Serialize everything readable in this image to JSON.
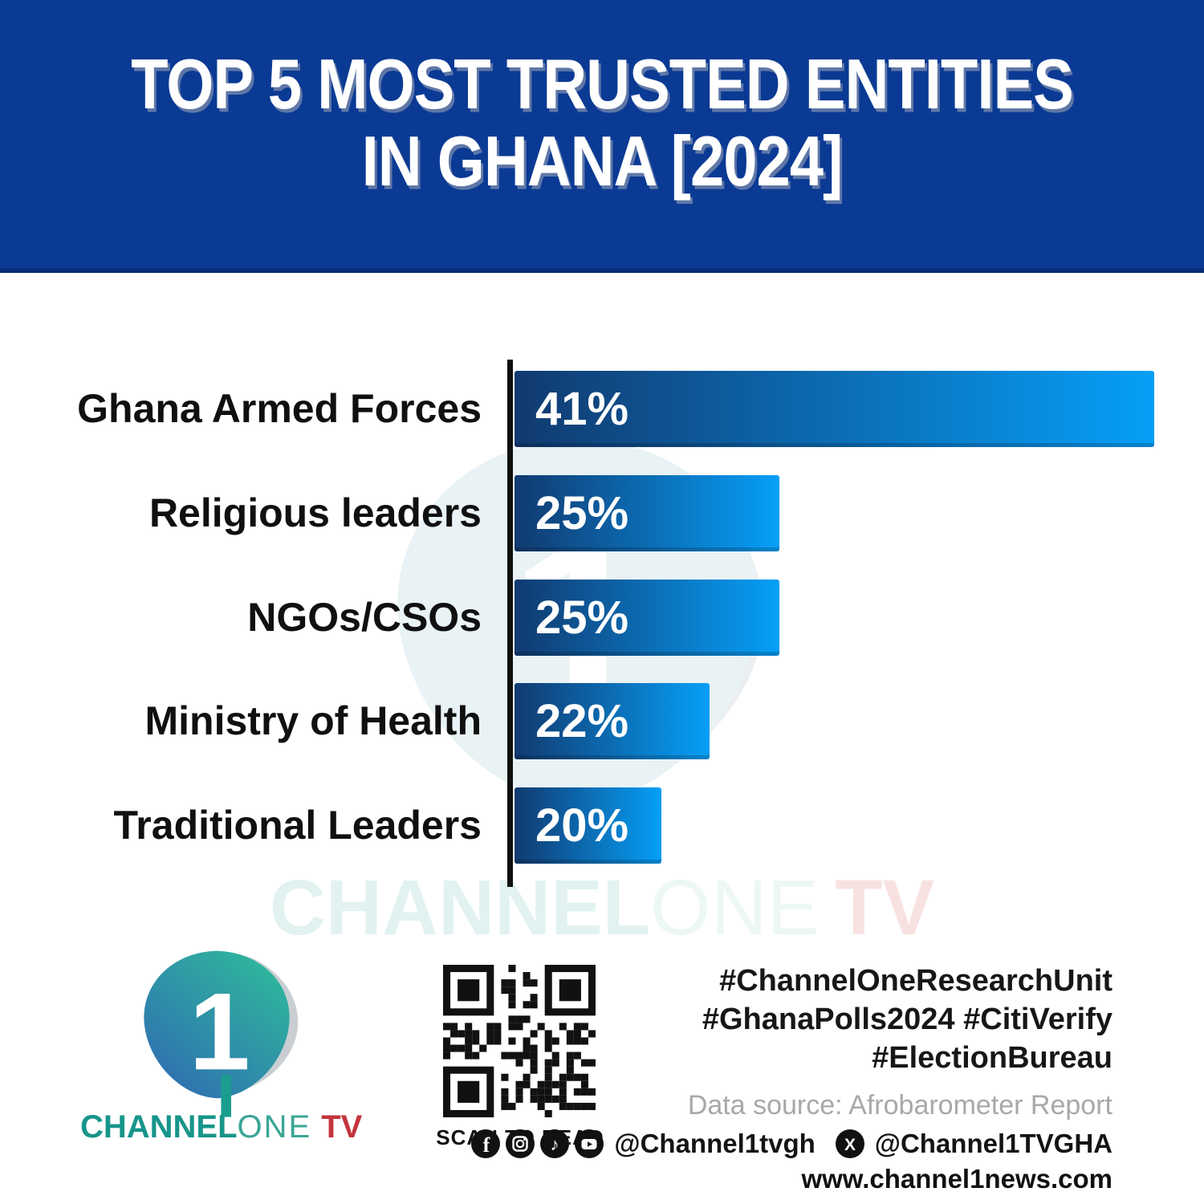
{
  "header": {
    "title_line1": "TOP 5 MOST TRUSTED ENTITIES",
    "title_line2": "IN GHANA [2024]",
    "bg_color": "#0a3a94",
    "title_color": "#ffffff"
  },
  "chart_data": {
    "type": "bar",
    "orientation": "horizontal",
    "title": "Top 5 Most Trusted Entities in Ghana [2024]",
    "categories": [
      "Ghana Armed Forces",
      "Religious leaders",
      "NGOs/CSOs",
      "Ministry of Health",
      "Traditional Leaders"
    ],
    "values": [
      41,
      25,
      25,
      22,
      20
    ],
    "value_labels": [
      "41%",
      "25%",
      "25%",
      "22%",
      "20%"
    ],
    "unit": "%",
    "grid": false,
    "legend": false,
    "bar_text_color": "#ffffff",
    "axis_color": "#101010",
    "display_widths_pct": [
      100,
      41.4,
      41.4,
      30.5,
      23.0
    ],
    "bar_gradient": {
      "start": "#113a70",
      "end": "#069ff7"
    }
  },
  "watermark": {
    "channel": "CHANNEL",
    "one": "ONE",
    "tv": "TV"
  },
  "footer": {
    "logo": {
      "numeral": "1",
      "brand_channel": "CHANNEL",
      "brand_one": "ONE",
      "brand_tv": "TV",
      "teal": "#2fae9c",
      "blue": "#2f6db2",
      "red": "#c5343c"
    },
    "qr_caption": "SCAN TO READ",
    "hashtags": [
      "#ChannelOneResearchUnit",
      "#GhanaPolls2024 #CitiVerify",
      "#ElectionBureau"
    ],
    "data_source": "Data source: Afrobarometer Report",
    "social_handle_1": "@Channel1tvgh",
    "social_handle_2": "@Channel1TVGHA",
    "website": "www.channel1news.com",
    "social_icons": [
      "facebook-icon",
      "instagram-icon",
      "tiktok-icon",
      "youtube-icon",
      "x-icon"
    ]
  }
}
